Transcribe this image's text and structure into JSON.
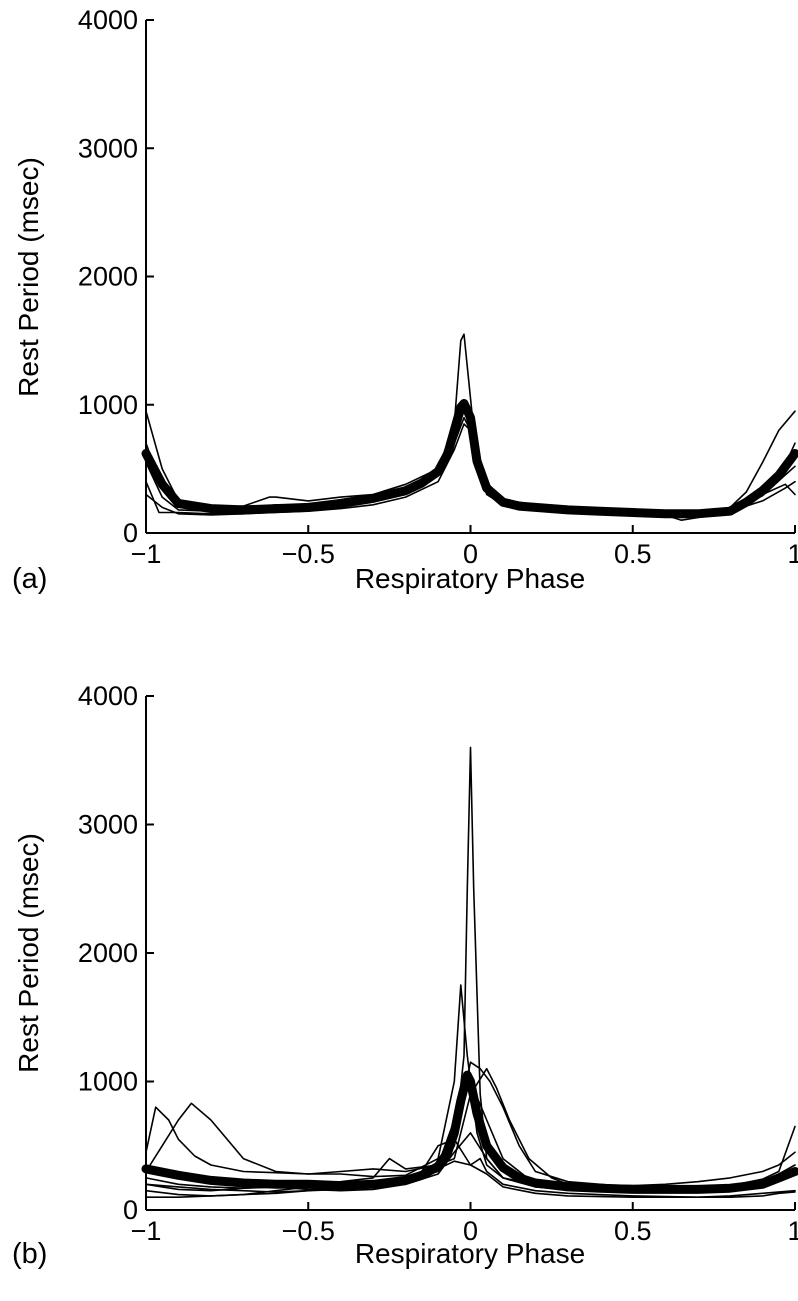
{
  "chart_data": [
    {
      "panel": "(a)",
      "type": "line",
      "xlabel": "Respiratory Phase",
      "ylabel": "Rest Period (msec)",
      "xlim": [
        -1,
        1
      ],
      "ylim": [
        0,
        4000
      ],
      "xticks": [
        -1,
        -0.5,
        0,
        0.5,
        1
      ],
      "xtick_labels": [
        "−1",
        "−0.5",
        "0",
        "0.5",
        "1"
      ],
      "yticks": [
        0,
        1000,
        2000,
        3000,
        4000
      ],
      "ytick_labels": [
        "0",
        "1000",
        "2000",
        "3000",
        "4000"
      ],
      "grid": false,
      "series": [
        {
          "kind": "mean",
          "x": [
            -1,
            -0.95,
            -0.9,
            -0.8,
            -0.7,
            -0.6,
            -0.5,
            -0.4,
            -0.3,
            -0.2,
            -0.15,
            -0.1,
            -0.07,
            -0.05,
            -0.03,
            -0.02,
            0,
            0.02,
            0.05,
            0.1,
            0.15,
            0.2,
            0.3,
            0.4,
            0.5,
            0.6,
            0.7,
            0.8,
            0.85,
            0.9,
            0.95,
            1
          ],
          "y": [
            620,
            380,
            230,
            190,
            180,
            190,
            200,
            230,
            270,
            330,
            390,
            480,
            620,
            800,
            980,
            1010,
            900,
            560,
            350,
            240,
            210,
            200,
            180,
            170,
            160,
            150,
            150,
            170,
            240,
            330,
            450,
            620
          ]
        },
        {
          "kind": "trial",
          "x": [
            -1,
            -0.95,
            -0.9,
            -0.8,
            -0.7,
            -0.6,
            -0.5,
            -0.4,
            -0.3,
            -0.2,
            -0.1,
            -0.05,
            -0.03,
            -0.02,
            0,
            0.02,
            0.05,
            0.1,
            0.2,
            0.3,
            0.4,
            0.5,
            0.6,
            0.7,
            0.8,
            0.85,
            0.9,
            0.95,
            1
          ],
          "y": [
            950,
            500,
            250,
            200,
            190,
            220,
            220,
            260,
            300,
            380,
            500,
            850,
            1500,
            1550,
            1050,
            550,
            320,
            230,
            200,
            180,
            170,
            170,
            160,
            150,
            200,
            320,
            550,
            800,
            950
          ]
        },
        {
          "kind": "trial",
          "x": [
            -1,
            -0.95,
            -0.9,
            -0.8,
            -0.7,
            -0.62,
            -0.6,
            -0.5,
            -0.4,
            -0.3,
            -0.2,
            -0.1,
            -0.05,
            -0.02,
            0,
            0.05,
            0.1,
            0.2,
            0.3,
            0.5,
            0.6,
            0.65,
            0.7,
            0.8,
            0.9,
            0.95,
            1
          ],
          "y": [
            700,
            350,
            220,
            200,
            210,
            280,
            280,
            250,
            280,
            300,
            350,
            450,
            700,
            900,
            800,
            350,
            260,
            220,
            200,
            180,
            150,
            120,
            140,
            180,
            320,
            420,
            700
          ]
        },
        {
          "kind": "trial",
          "x": [
            -1,
            -0.96,
            -0.9,
            -0.8,
            -0.7,
            -0.6,
            -0.5,
            -0.4,
            -0.3,
            -0.2,
            -0.1,
            -0.05,
            -0.03,
            0,
            0.03,
            0.06,
            0.1,
            0.2,
            0.3,
            0.5,
            0.6,
            0.65,
            0.7,
            0.8,
            0.9,
            0.97,
            1
          ],
          "y": [
            400,
            160,
            160,
            150,
            150,
            170,
            180,
            200,
            250,
            300,
            480,
            700,
            1000,
            950,
            500,
            300,
            220,
            190,
            180,
            160,
            140,
            100,
            120,
            170,
            300,
            380,
            300
          ]
        },
        {
          "kind": "trial",
          "x": [
            -1,
            -0.95,
            -0.9,
            -0.8,
            -0.7,
            -0.6,
            -0.5,
            -0.4,
            -0.3,
            -0.2,
            -0.1,
            -0.05,
            -0.02,
            0,
            0.04,
            0.1,
            0.2,
            0.3,
            0.5,
            0.6,
            0.7,
            0.8,
            0.9,
            0.96,
            1
          ],
          "y": [
            550,
            280,
            180,
            170,
            160,
            170,
            180,
            210,
            250,
            320,
            450,
            750,
            950,
            880,
            420,
            260,
            210,
            190,
            170,
            150,
            140,
            180,
            290,
            430,
            520
          ]
        },
        {
          "kind": "trial",
          "x": [
            -1,
            -0.95,
            -0.9,
            -0.8,
            -0.7,
            -0.6,
            -0.5,
            -0.4,
            -0.3,
            -0.2,
            -0.1,
            -0.05,
            -0.02,
            0,
            0.05,
            0.1,
            0.2,
            0.3,
            0.5,
            0.65,
            0.7,
            0.8,
            0.9,
            0.97,
            1
          ],
          "y": [
            300,
            200,
            150,
            140,
            150,
            160,
            170,
            190,
            220,
            280,
            400,
            650,
            850,
            800,
            300,
            220,
            190,
            180,
            160,
            130,
            140,
            170,
            250,
            350,
            400
          ]
        }
      ]
    },
    {
      "panel": "(b)",
      "type": "line",
      "xlabel": "Respiratory Phase",
      "ylabel": "Rest Period (msec)",
      "xlim": [
        -1,
        1
      ],
      "ylim": [
        0,
        4000
      ],
      "xticks": [
        -1,
        -0.5,
        0,
        0.5,
        1
      ],
      "xtick_labels": [
        "−1",
        "−0.5",
        "0",
        "0.5",
        "1"
      ],
      "yticks": [
        0,
        1000,
        2000,
        3000,
        4000
      ],
      "ytick_labels": [
        "0",
        "1000",
        "2000",
        "3000",
        "4000"
      ],
      "grid": false,
      "series": [
        {
          "kind": "mean",
          "x": [
            -1,
            -0.9,
            -0.8,
            -0.7,
            -0.6,
            -0.5,
            -0.4,
            -0.3,
            -0.2,
            -0.15,
            -0.1,
            -0.07,
            -0.05,
            -0.03,
            -0.01,
            0,
            0.02,
            0.05,
            0.1,
            0.15,
            0.2,
            0.3,
            0.4,
            0.5,
            0.6,
            0.7,
            0.8,
            0.9,
            0.95,
            1
          ],
          "y": [
            320,
            270,
            230,
            210,
            200,
            200,
            190,
            200,
            230,
            270,
            340,
            450,
            600,
            850,
            1050,
            1000,
            750,
            500,
            330,
            250,
            210,
            180,
            170,
            160,
            160,
            160,
            170,
            200,
            250,
            300
          ]
        },
        {
          "kind": "trial",
          "x": [
            -1,
            -0.95,
            -0.9,
            -0.8,
            -0.7,
            -0.6,
            -0.5,
            -0.4,
            -0.3,
            -0.2,
            -0.1,
            -0.05,
            -0.02,
            -0.01,
            0,
            0.01,
            0.03,
            0.05,
            0.1,
            0.2,
            0.3,
            0.5,
            0.7,
            0.8,
            0.9,
            0.95,
            1
          ],
          "y": [
            200,
            180,
            160,
            150,
            170,
            180,
            200,
            200,
            210,
            230,
            300,
            500,
            1200,
            2500,
            3600,
            2500,
            900,
            400,
            250,
            180,
            160,
            140,
            140,
            150,
            180,
            230,
            300
          ]
        },
        {
          "kind": "trial",
          "x": [
            -1,
            -0.95,
            -0.9,
            -0.86,
            -0.8,
            -0.7,
            -0.6,
            -0.5,
            -0.4,
            -0.3,
            -0.2,
            -0.1,
            -0.05,
            -0.03,
            -0.01,
            0.02,
            0.05,
            0.1,
            0.2,
            0.3,
            0.5,
            0.7,
            0.8,
            0.9,
            0.95,
            1
          ],
          "y": [
            300,
            500,
            700,
            830,
            700,
            400,
            300,
            280,
            280,
            260,
            270,
            400,
            1000,
            1750,
            1200,
            600,
            350,
            250,
            200,
            180,
            150,
            140,
            160,
            200,
            270,
            320
          ]
        },
        {
          "kind": "trial",
          "x": [
            -1,
            -0.97,
            -0.93,
            -0.9,
            -0.85,
            -0.8,
            -0.7,
            -0.6,
            -0.5,
            -0.4,
            -0.3,
            -0.2,
            -0.1,
            -0.05,
            -0.02,
            0,
            0.03,
            0.06,
            0.1,
            0.15,
            0.2,
            0.3,
            0.5,
            0.7,
            0.8,
            0.9,
            0.95,
            1
          ],
          "y": [
            450,
            800,
            700,
            550,
            420,
            350,
            300,
            290,
            280,
            300,
            320,
            300,
            350,
            500,
            900,
            1150,
            1100,
            1000,
            800,
            500,
            300,
            220,
            180,
            170,
            190,
            240,
            300,
            650
          ]
        },
        {
          "kind": "trial",
          "x": [
            -1,
            -0.9,
            -0.8,
            -0.7,
            -0.6,
            -0.5,
            -0.4,
            -0.3,
            -0.25,
            -0.2,
            -0.1,
            -0.05,
            0,
            0.05,
            0.08,
            0.12,
            0.18,
            0.25,
            0.3,
            0.5,
            0.6,
            0.7,
            0.8,
            0.9,
            0.95,
            1
          ],
          "y": [
            250,
            200,
            180,
            170,
            180,
            200,
            220,
            250,
            400,
            320,
            350,
            400,
            900,
            1100,
            950,
            700,
            400,
            250,
            200,
            190,
            200,
            220,
            250,
            300,
            350,
            450
          ]
        },
        {
          "kind": "trial",
          "x": [
            -1,
            -0.9,
            -0.8,
            -0.7,
            -0.6,
            -0.5,
            -0.4,
            -0.3,
            -0.2,
            -0.15,
            -0.1,
            -0.05,
            0,
            0.03,
            0.05,
            0.1,
            0.2,
            0.3,
            0.5,
            0.7,
            0.8,
            0.9,
            1
          ],
          "y": [
            150,
            120,
            110,
            120,
            150,
            180,
            200,
            220,
            250,
            300,
            500,
            550,
            350,
            400,
            300,
            200,
            150,
            130,
            110,
            100,
            110,
            130,
            150
          ]
        },
        {
          "kind": "trial",
          "x": [
            -1,
            -0.9,
            -0.8,
            -0.7,
            -0.6,
            -0.5,
            -0.4,
            -0.3,
            -0.2,
            -0.1,
            -0.05,
            0,
            0.05,
            0.1,
            0.2,
            0.3,
            0.5,
            0.7,
            0.8,
            0.9,
            0.95,
            1
          ],
          "y": [
            100,
            100,
            110,
            120,
            130,
            150,
            180,
            200,
            250,
            320,
            380,
            350,
            280,
            180,
            130,
            110,
            100,
            100,
            100,
            110,
            130,
            140
          ]
        },
        {
          "kind": "trial",
          "x": [
            -1,
            -0.9,
            -0.8,
            -0.7,
            -0.6,
            -0.5,
            -0.4,
            -0.3,
            -0.2,
            -0.1,
            -0.05,
            0,
            0.05,
            0.1,
            0.2,
            0.3,
            0.5,
            0.7,
            0.8,
            0.9,
            0.95,
            1
          ],
          "y": [
            200,
            180,
            160,
            150,
            140,
            150,
            160,
            180,
            200,
            280,
            450,
            600,
            400,
            250,
            180,
            160,
            150,
            150,
            160,
            200,
            280,
            350
          ]
        },
        {
          "kind": "trial",
          "x": [
            -1,
            -0.9,
            -0.8,
            -0.7,
            -0.6,
            -0.5,
            -0.4,
            -0.3,
            -0.2,
            -0.1,
            -0.05,
            0,
            0.05,
            0.1,
            0.2,
            0.3,
            0.5,
            0.7,
            0.8,
            0.9,
            0.95,
            1
          ],
          "y": [
            350,
            280,
            220,
            200,
            180,
            160,
            150,
            160,
            200,
            350,
            700,
            1000,
            700,
            400,
            200,
            170,
            150,
            140,
            150,
            200,
            260,
            300
          ]
        }
      ]
    }
  ]
}
